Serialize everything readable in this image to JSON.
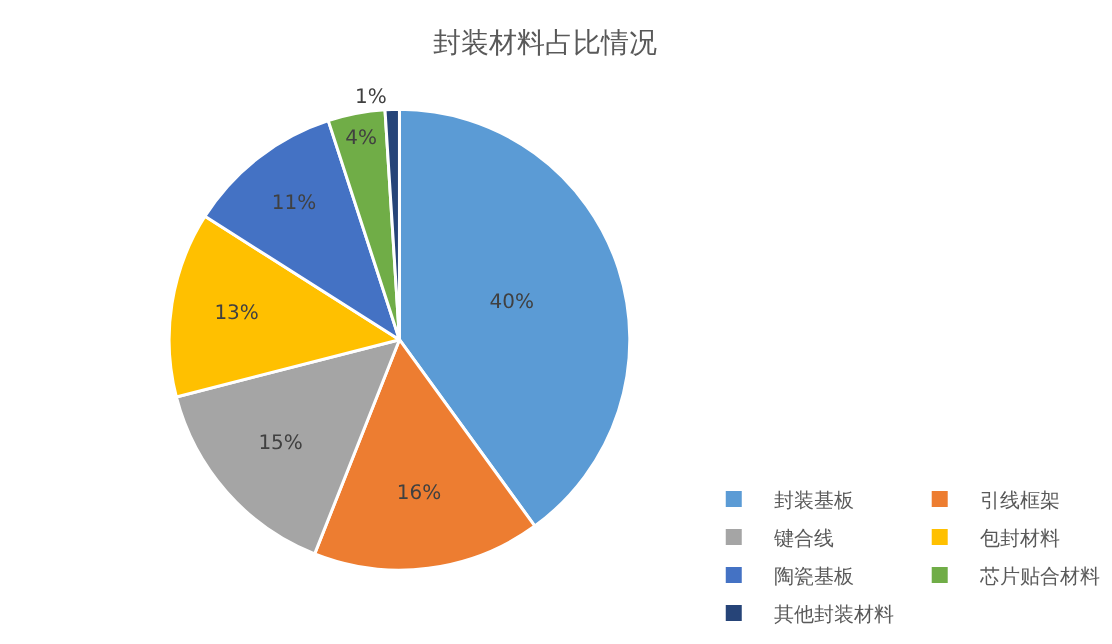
{
  "chart_data": {
    "type": "pie",
    "title": "封装材料占比情况",
    "categories": [
      "封装基板",
      "引线框架",
      "键合线",
      "包封材料",
      "陶瓷基板",
      "芯片贴合材料",
      "其他封装材料"
    ],
    "values": [
      40,
      16,
      15,
      13,
      11,
      4,
      1
    ],
    "value_labels": [
      "40%",
      "16%",
      "15%",
      "13%",
      "11%",
      "4%",
      "1%"
    ],
    "colors": [
      "#5b9bd5",
      "#ed7d31",
      "#a5a5a5",
      "#ffc000",
      "#4472c4",
      "#70ad47",
      "#264478"
    ],
    "legend": "bottom right"
  }
}
